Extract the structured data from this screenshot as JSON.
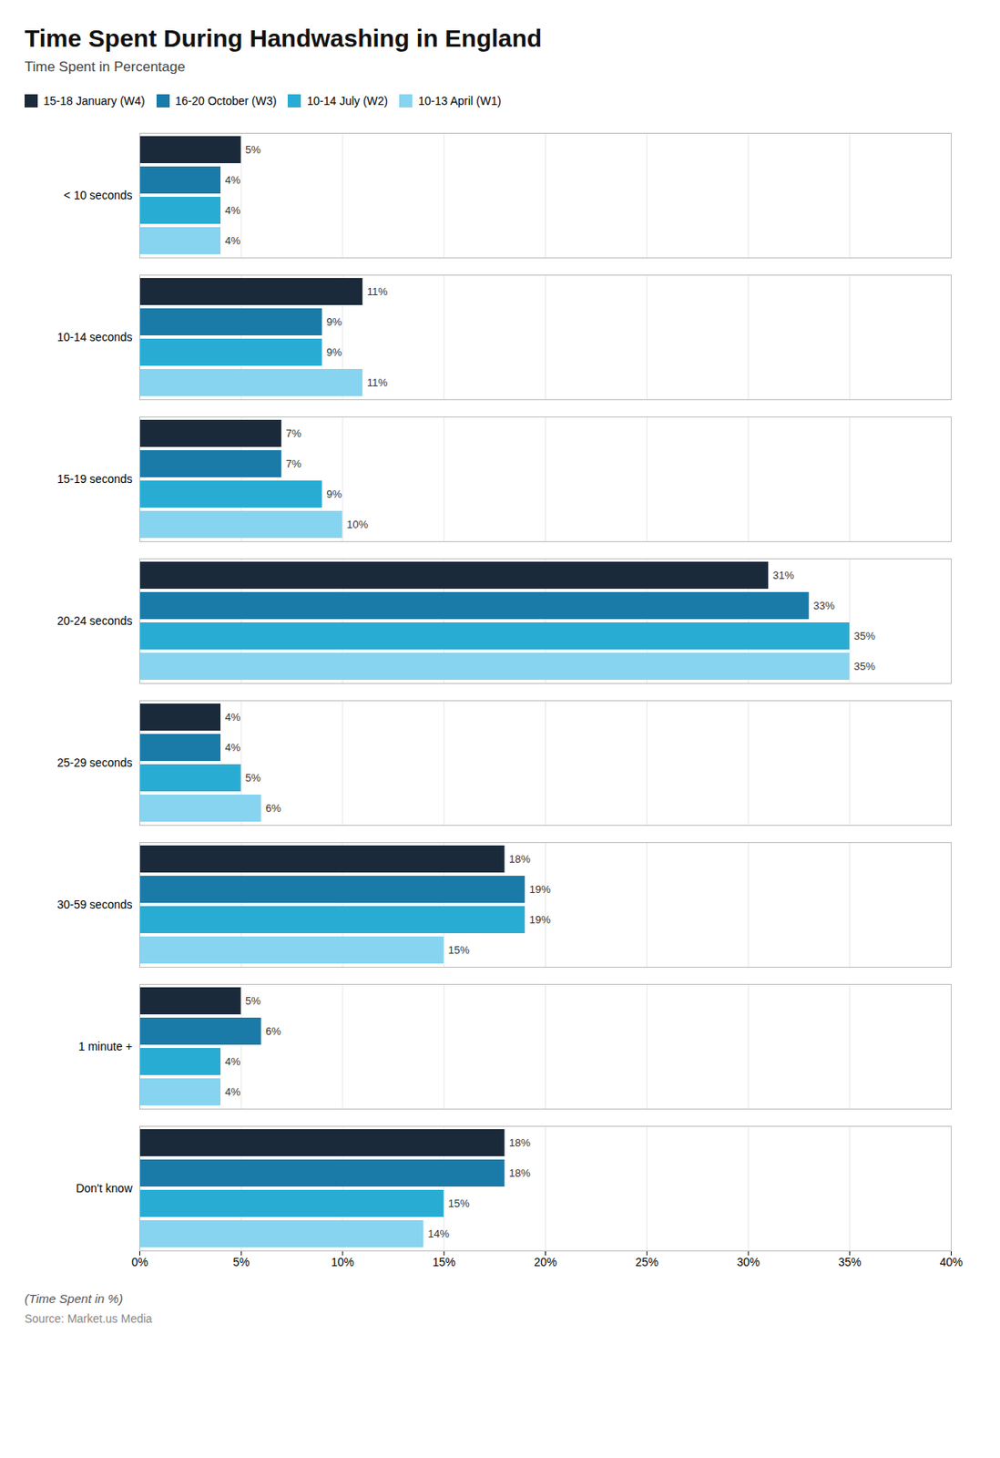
{
  "chart_data": {
    "type": "bar",
    "orientation": "horizontal",
    "title": "Time Spent During Handwashing in England",
    "subtitle": "Time Spent in Percentage",
    "xlabel": "(Time Spent in %)",
    "source": "Source: Market.us Media",
    "categories": [
      "< 10 seconds",
      "10-14 seconds",
      "15-19 seconds",
      "20-24 seconds",
      "25-29 seconds",
      "30-59 seconds",
      "1 minute +",
      "Don't know"
    ],
    "series": [
      {
        "name": "15-18 January (W4)",
        "color": "#1b2a3b",
        "values": [
          5,
          11,
          7,
          31,
          4,
          18,
          5,
          18
        ],
        "value_labels": [
          "5%",
          "11%",
          "7%",
          "31%",
          "4%",
          "18%",
          "5%",
          "18%"
        ]
      },
      {
        "name": "16-20 October (W3)",
        "color": "#1a7aa8",
        "values": [
          4,
          9,
          7,
          33,
          4,
          19,
          6,
          18
        ],
        "value_labels": [
          "4%",
          "9%",
          "7%",
          "33%",
          "4%",
          "19%",
          "6%",
          "18%"
        ]
      },
      {
        "name": "10-14 July (W2)",
        "color": "#29acd4",
        "values": [
          4,
          9,
          9,
          35,
          5,
          19,
          4,
          15
        ],
        "value_labels": [
          "4%",
          "9%",
          "9%",
          "35%",
          "5%",
          "19%",
          "4%",
          "15%"
        ]
      },
      {
        "name": "10-13 April (W1)",
        "color": "#87d4f0",
        "values": [
          4,
          11,
          10,
          35,
          6,
          15,
          4,
          14
        ],
        "value_labels": [
          "4%",
          "11%",
          "10%",
          "35%",
          "6%",
          "15%",
          "4%",
          "14%"
        ]
      }
    ],
    "xlim": [
      0,
      40
    ],
    "xticks": [
      {
        "value": 0,
        "label": "0%"
      },
      {
        "value": 5,
        "label": "5%"
      },
      {
        "value": 10,
        "label": "10%"
      },
      {
        "value": 15,
        "label": "15%"
      },
      {
        "value": 20,
        "label": "20%"
      },
      {
        "value": 25,
        "label": "25%"
      },
      {
        "value": 30,
        "label": "30%"
      },
      {
        "value": 35,
        "label": "35%"
      },
      {
        "value": 40,
        "label": "40%"
      }
    ],
    "grid": true,
    "legend": "top",
    "data_labels": true
  }
}
